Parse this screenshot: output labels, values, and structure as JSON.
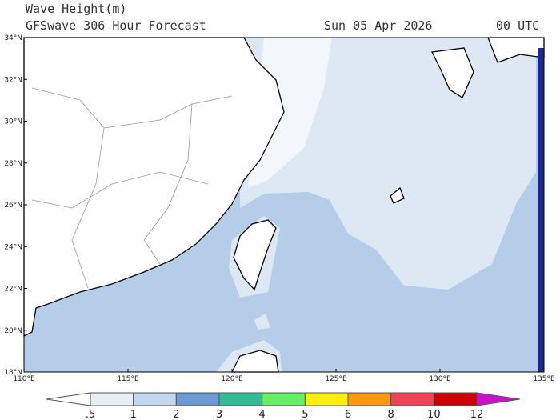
{
  "header": {
    "title": "Wave Height(m)",
    "subtitle": "GFSwave 306 Hour Forecast",
    "date": "Sun 05 Apr 2026",
    "time": "00 UTC"
  },
  "map": {
    "lat_labels": [
      "34°N",
      "32°N",
      "30°N",
      "28°N",
      "26°N",
      "24°N",
      "22°N",
      "20°N",
      "18°N"
    ],
    "lon_labels": [
      "110°E",
      "115°E",
      "120°E",
      "125°E",
      "130°E",
      "135°E"
    ]
  },
  "colorbar": {
    "labels": [
      ".5",
      "1",
      "2",
      "3",
      "4",
      "5",
      "6",
      "8",
      "10",
      "12"
    ],
    "colors": [
      "#ffffff",
      "#e6eff8",
      "#c4d7ee",
      "#6b9bd2",
      "#33bb99",
      "#66ee66",
      "#ffee11",
      "#ff9911",
      "#ee4455",
      "#cc0000",
      "#cc11cc"
    ]
  }
}
